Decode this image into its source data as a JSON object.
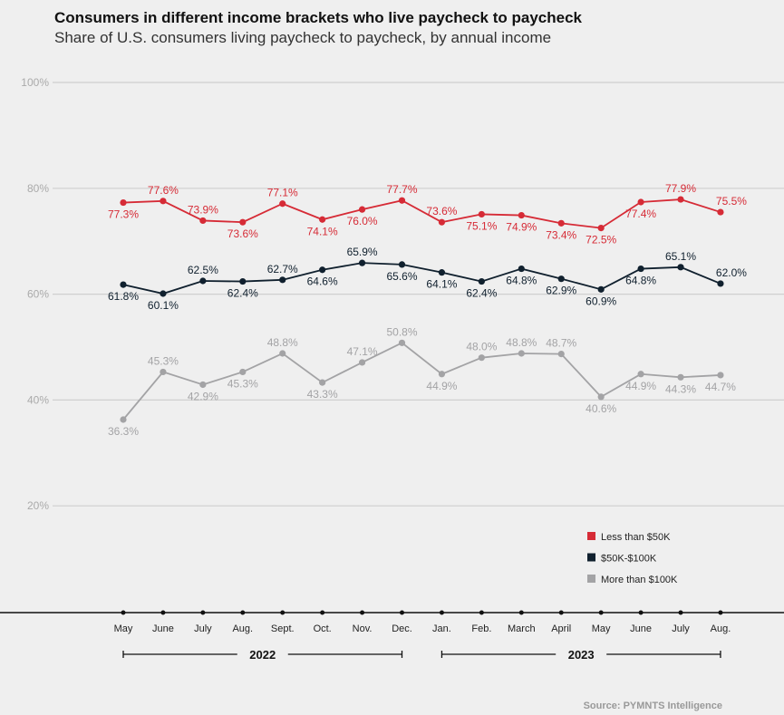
{
  "chart_data": {
    "type": "line",
    "title": "Consumers in different income brackets who live paycheck to paycheck",
    "subtitle": "Share of U.S. consumers living paycheck to paycheck, by annual income",
    "categories": [
      "May",
      "June",
      "July",
      "Aug.",
      "Sept.",
      "Oct.",
      "Nov.",
      "Dec.",
      "Jan.",
      "Feb.",
      "March",
      "April",
      "May",
      "June",
      "July",
      "Aug."
    ],
    "years": [
      {
        "label": "2022",
        "from": 0,
        "to": 7
      },
      {
        "label": "2023",
        "from": 8,
        "to": 15
      }
    ],
    "ylim": [
      0,
      100
    ],
    "yticks": [
      20,
      40,
      60,
      80,
      100
    ],
    "ytick_labels": [
      "20%",
      "40%",
      "60%",
      "80%",
      "100%"
    ],
    "grid": true,
    "legend_placement": "bottom-right",
    "series": [
      {
        "name": "Less than $50K",
        "color": "#d62b36",
        "values": [
          77.3,
          77.6,
          73.9,
          73.6,
          77.1,
          74.1,
          76.0,
          77.7,
          73.6,
          75.1,
          74.9,
          73.4,
          72.5,
          77.4,
          77.9,
          75.5
        ]
      },
      {
        "name": "$50K-$100K",
        "color": "#10202e",
        "values": [
          61.8,
          60.1,
          62.5,
          62.4,
          62.7,
          64.6,
          65.9,
          65.6,
          64.1,
          62.4,
          64.8,
          62.9,
          60.9,
          64.8,
          65.1,
          62.0
        ]
      },
      {
        "name": "More than $100K",
        "color": "#a3a3a5",
        "values": [
          36.3,
          45.3,
          42.9,
          45.3,
          48.8,
          43.3,
          47.1,
          50.8,
          44.9,
          48.0,
          48.8,
          48.7,
          40.6,
          44.9,
          44.3,
          44.7
        ]
      }
    ],
    "source": "Source: PYMNTS Intelligence"
  }
}
